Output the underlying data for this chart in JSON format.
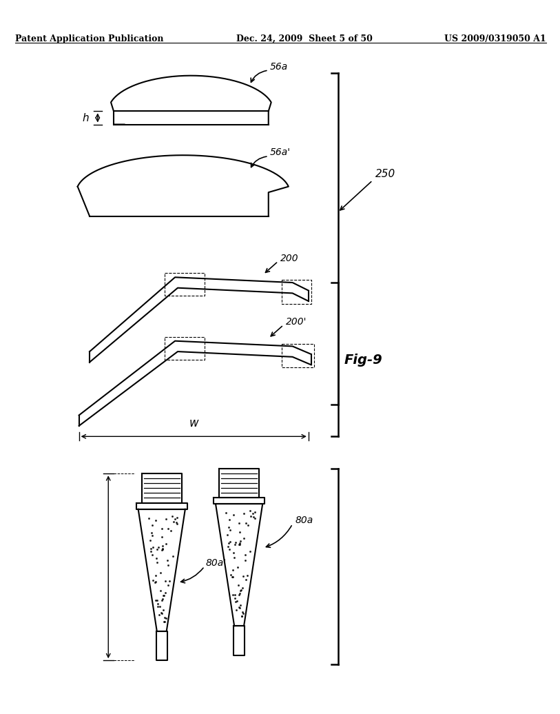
{
  "title_left": "Patent Application Publication",
  "title_center": "Dec. 24, 2009  Sheet 5 of 50",
  "title_right": "US 2009/0319050 A1",
  "fig_label": "Fig-9",
  "bg_color": "#ffffff",
  "line_color": "#000000"
}
